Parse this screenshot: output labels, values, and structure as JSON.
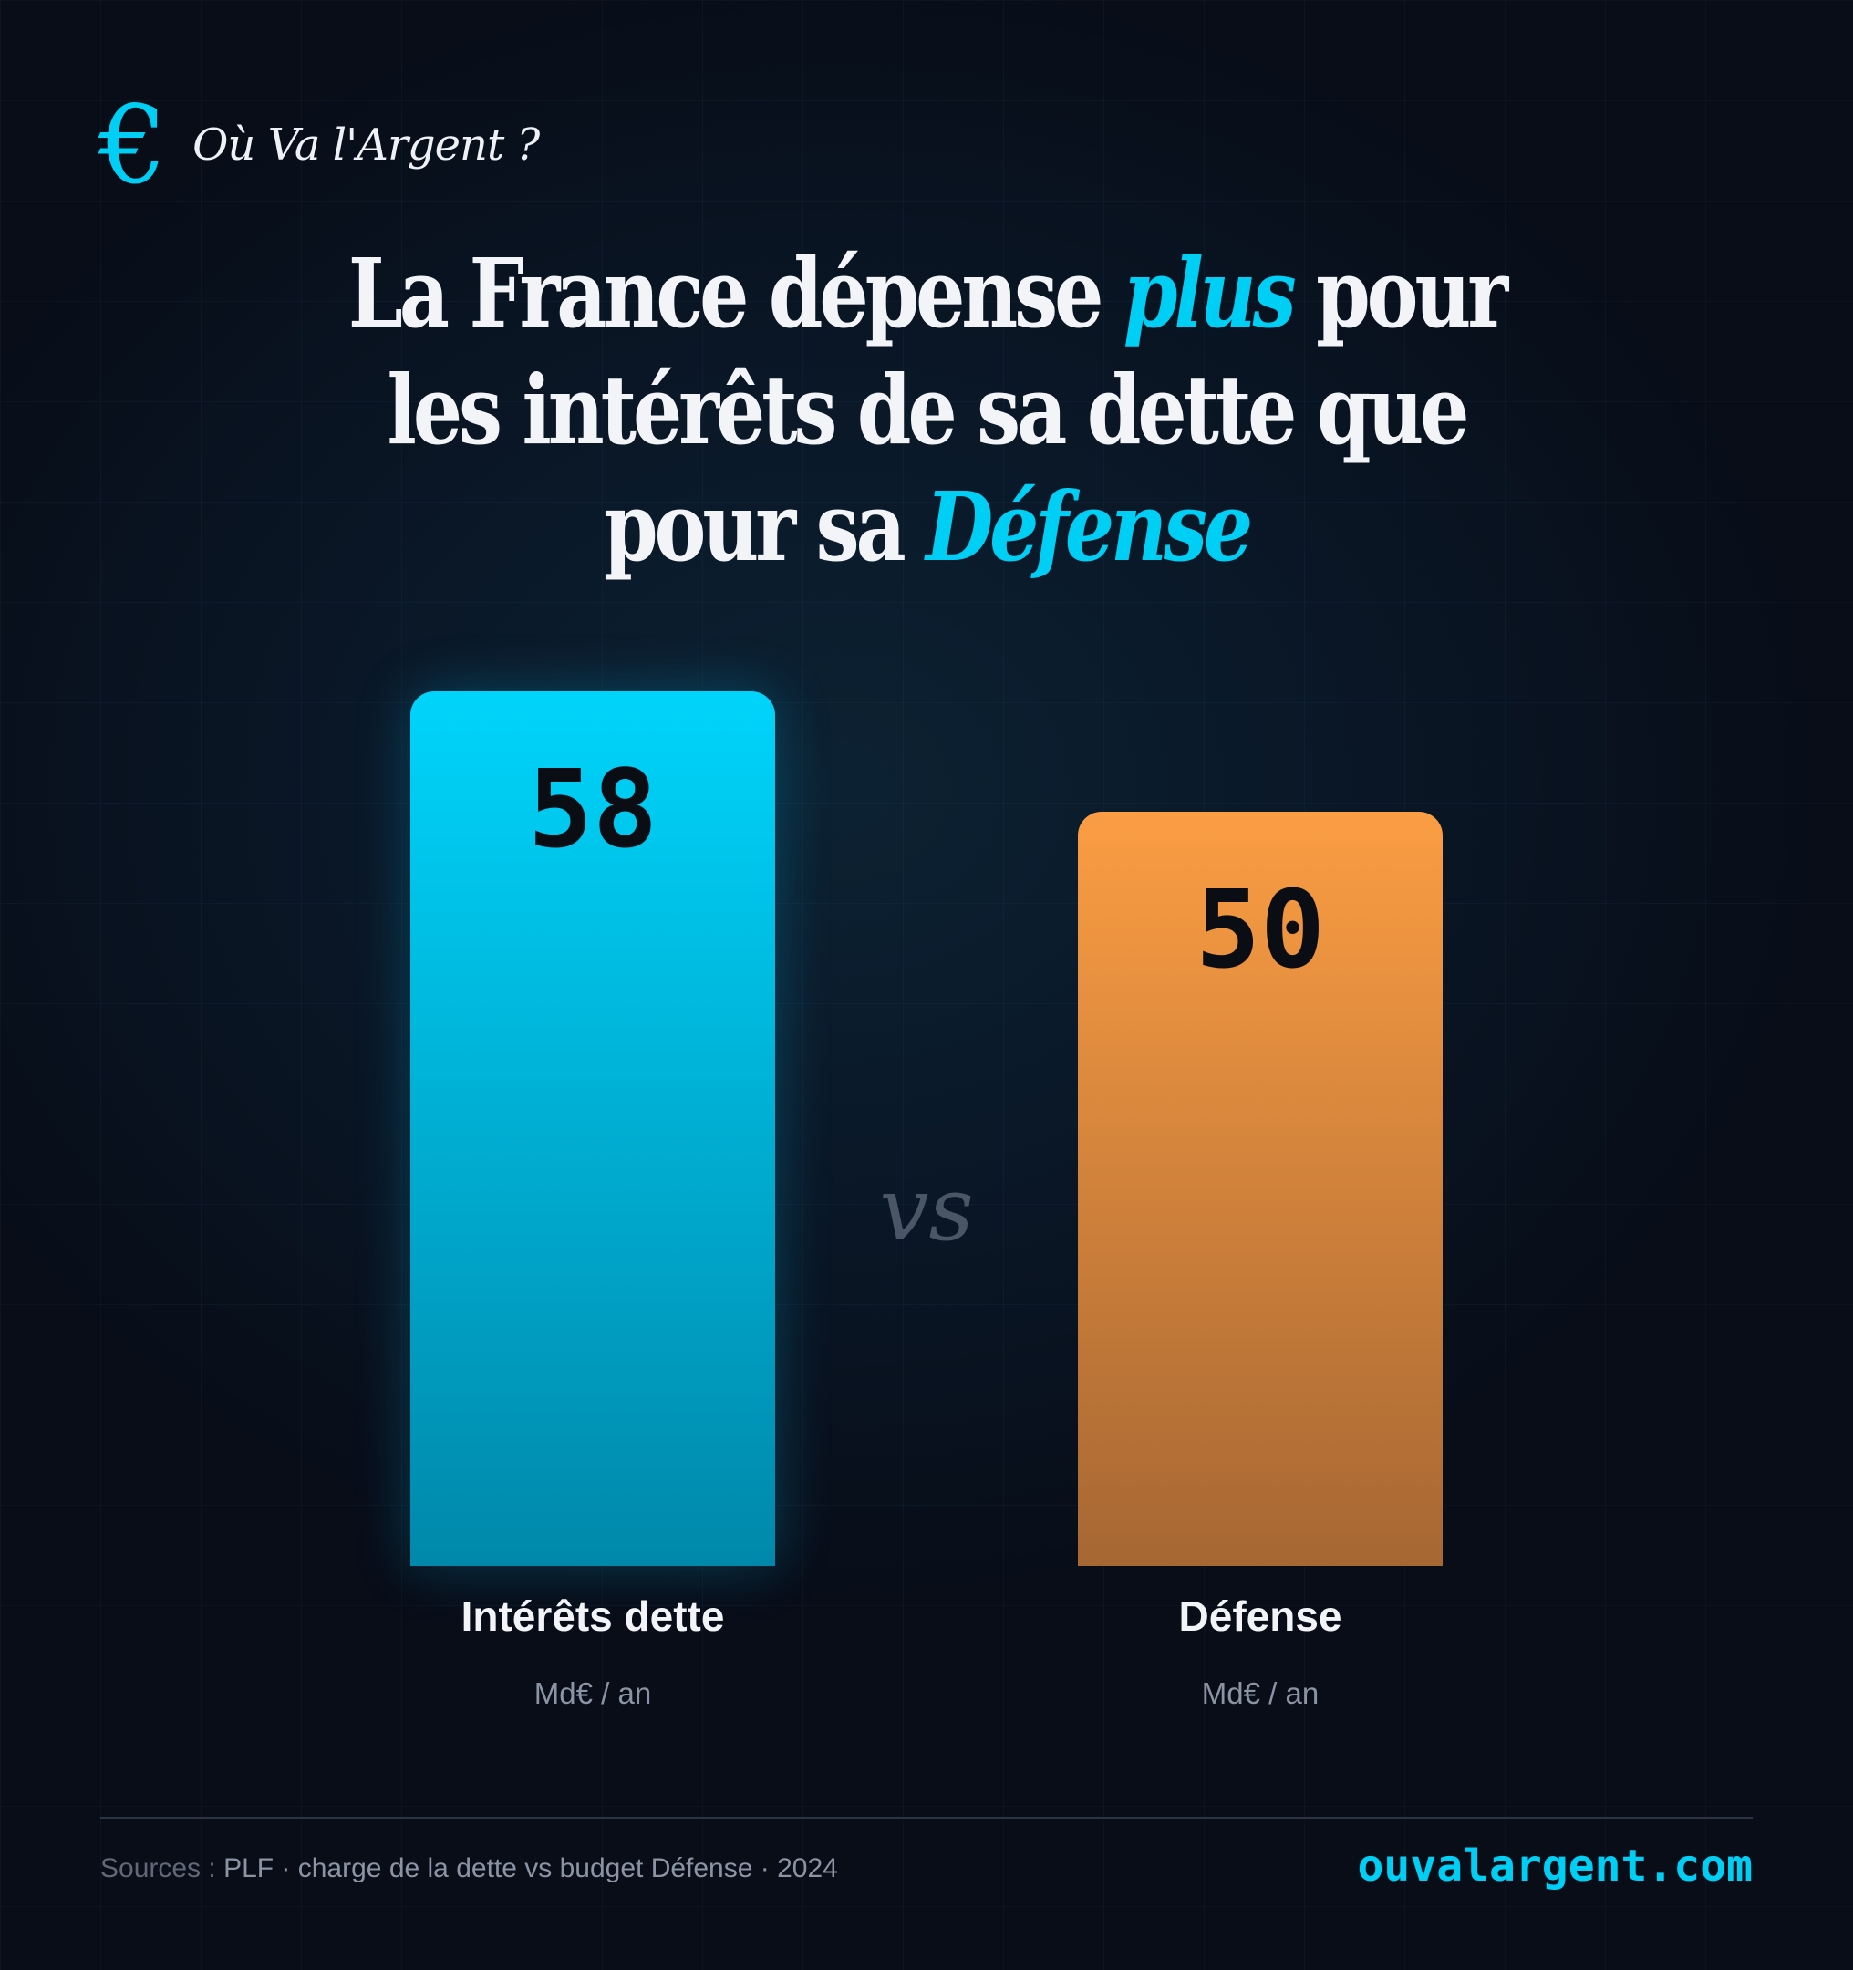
{
  "header": {
    "logo_symbol": "€",
    "brand": "Où Va l'Argent ?"
  },
  "title": {
    "part1": "La France dépense ",
    "highlight1": "plus",
    "part2": " pour",
    "line2": "les intérêts de sa dette que",
    "line3": "pour sa ",
    "highlight2": "Défense"
  },
  "chart_data": {
    "type": "bar",
    "title": "La France dépense plus pour les intérêts de sa dette que pour sa Défense",
    "categories": [
      "Intérêts dette",
      "Défense"
    ],
    "values": [
      58,
      50
    ],
    "value_labels": [
      "58",
      "50"
    ],
    "units": [
      "Md€ / an",
      "Md€ / an"
    ],
    "colors": [
      "#00d4fb",
      "#fb9d43"
    ],
    "ylim": [
      0,
      58
    ],
    "separator": "vs",
    "grid": false
  },
  "footer": {
    "sources_key": "Sources :",
    "sources_text": " PLF · charge de la dette vs budget Défense · 2024",
    "site": "ouvalargent.com"
  }
}
